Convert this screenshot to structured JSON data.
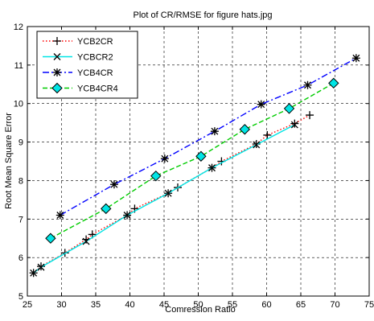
{
  "chart_data": {
    "type": "line",
    "title": "Plot of CR/RMSE for figure hats.jpg",
    "xlabel": "Comression Ratio",
    "ylabel": "Root Mean Square Error",
    "xlim": [
      25,
      75
    ],
    "ylim": [
      5,
      12
    ],
    "xticks": [
      25,
      30,
      35,
      40,
      45,
      50,
      55,
      60,
      65,
      70,
      75
    ],
    "yticks": [
      5,
      6,
      7,
      8,
      9,
      10,
      11,
      12
    ],
    "grid": true,
    "legend_position": "top-left",
    "series": [
      {
        "name": "YCB2CR",
        "color": "#ff0000",
        "line_style": "dotted",
        "marker": "plus",
        "x": [
          25.9,
          27.0,
          30.5,
          33.6,
          34.5,
          39.6,
          40.7,
          45.6,
          47.0,
          52.0,
          53.4,
          58.5,
          60.1,
          64.1,
          66.3
        ],
        "y": [
          5.6,
          5.77,
          6.12,
          6.47,
          6.6,
          7.1,
          7.27,
          7.67,
          7.82,
          8.33,
          8.5,
          8.95,
          9.18,
          9.48,
          9.7
        ]
      },
      {
        "name": "YCBCR2",
        "color": "#00e5e5",
        "line_style": "solid",
        "marker": "x",
        "x": [
          25.9,
          27.0,
          33.6,
          39.6,
          45.6,
          52.0,
          58.5,
          64.1
        ],
        "y": [
          5.6,
          5.75,
          6.42,
          7.1,
          7.67,
          8.33,
          8.93,
          9.45
        ]
      },
      {
        "name": "YCB4CR",
        "color": "#0000ff",
        "line_style": "dashdot",
        "marker": "asterisk",
        "x": [
          29.8,
          37.7,
          45.1,
          52.4,
          59.2,
          66.0,
          73.1
        ],
        "y": [
          7.1,
          7.9,
          8.57,
          9.28,
          9.98,
          10.48,
          11.18
        ]
      },
      {
        "name": "YCB4CR4",
        "color": "#00cc00",
        "line_style": "dashed",
        "marker": "diamond",
        "marker_fill": "#00e5e5",
        "x": [
          28.4,
          36.5,
          43.8,
          50.4,
          56.8,
          63.3,
          69.8
        ],
        "y": [
          6.5,
          7.27,
          8.12,
          8.63,
          9.33,
          9.87,
          10.53
        ]
      }
    ]
  }
}
